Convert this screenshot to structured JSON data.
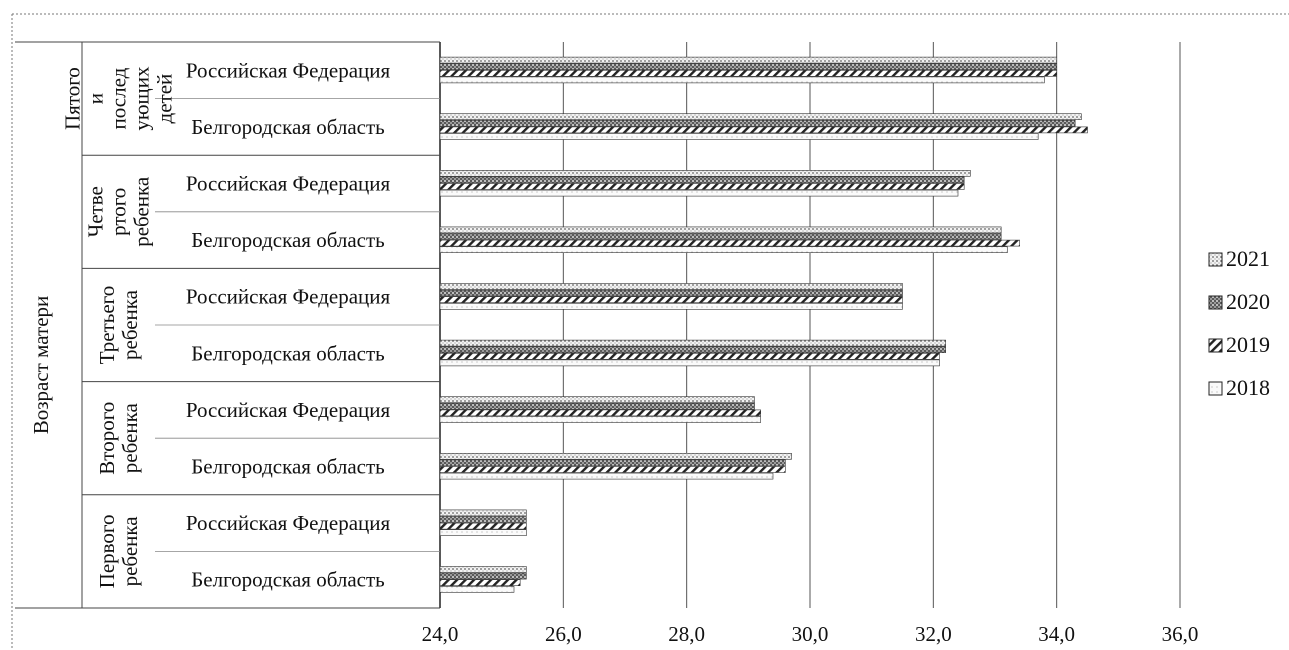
{
  "chart_data": {
    "type": "bar",
    "orientation": "horizontal",
    "title": "",
    "xlabel": "",
    "ylabel": "",
    "xlim": [
      24,
      36
    ],
    "x_ticks": [
      "24,0",
      "26,0",
      "28,0",
      "30,0",
      "32,0",
      "34,0",
      "36,0"
    ],
    "grid": true,
    "legend_position": "right",
    "outer_label": "Возраст матери",
    "groups": [
      {
        "label": "Пятого и последующих детей",
        "rows": [
          {
            "label": "Российская Федерация",
            "values": [
              34.0,
              34.0,
              34.0,
              33.8
            ]
          },
          {
            "label": "Белгородская область",
            "values": [
              34.4,
              34.3,
              34.5,
              33.7
            ]
          }
        ]
      },
      {
        "label": "Четвертого ребенка",
        "rows": [
          {
            "label": "Российская Федерация",
            "values": [
              32.6,
              32.5,
              32.5,
              32.4
            ]
          },
          {
            "label": "Белгородская область",
            "values": [
              33.1,
              33.1,
              33.4,
              33.2
            ]
          }
        ]
      },
      {
        "label": "Третьего ребенка",
        "rows": [
          {
            "label": "Российская Федерация",
            "values": [
              31.5,
              31.5,
              31.5,
              31.5
            ]
          },
          {
            "label": "Белгородская область",
            "values": [
              32.2,
              32.2,
              32.1,
              32.1
            ]
          }
        ]
      },
      {
        "label": "Второго ребенка",
        "rows": [
          {
            "label": "Российская Федерация",
            "values": [
              29.1,
              29.1,
              29.2,
              29.2
            ]
          },
          {
            "label": "Белгородская область",
            "values": [
              29.7,
              29.6,
              29.6,
              29.4
            ]
          }
        ]
      },
      {
        "label": "Первого ребенка",
        "rows": [
          {
            "label": "Российская Федерация",
            "values": [
              25.4,
              25.4,
              25.4,
              25.4
            ]
          },
          {
            "label": "Белгородская область",
            "values": [
              25.4,
              25.4,
              25.3,
              25.2
            ]
          }
        ]
      }
    ],
    "series": [
      {
        "name": "2021",
        "pattern": "dots",
        "color": "#d9d9d9"
      },
      {
        "name": "2020",
        "pattern": "dense",
        "color": "#555555"
      },
      {
        "name": "2019",
        "pattern": "diagonal",
        "color": "#333333"
      },
      {
        "name": "2018",
        "pattern": "light",
        "color": "#e6e6e6"
      }
    ]
  }
}
